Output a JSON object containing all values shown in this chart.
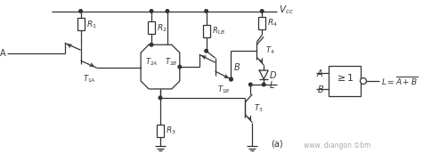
{
  "bg_color": "#ffffff",
  "line_color": "#333333",
  "text_color": "#333333",
  "watermark_color": "#aaaaaa",
  "vcc_label": "V_{cc}",
  "subfig_label": "(a)",
  "watermark": "www. diangon.①bm"
}
